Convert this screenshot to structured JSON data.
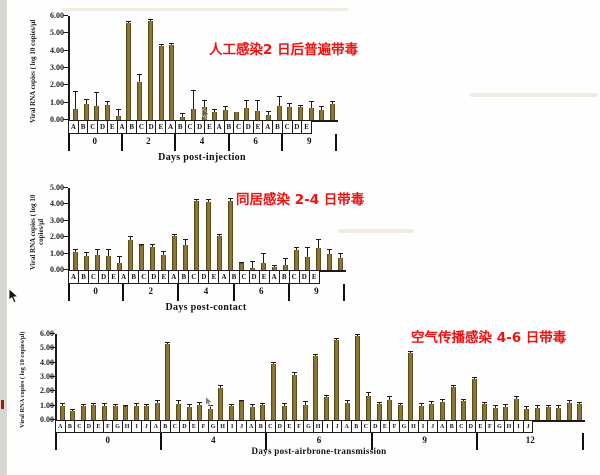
{
  "chart_data": [
    {
      "type": "bar",
      "annotation": "人工感染2 日后普遍带毒",
      "xlabel": "Days post-injection",
      "ylabel": "Viral RNA copies ( log 10 copies/µl",
      "ylim": [
        0,
        6
      ],
      "ytick_step": 1,
      "grid": false,
      "groups": [
        {
          "day": "0",
          "bars": [
            {
              "label": "A",
              "value": 0.65,
              "err": 0.95
            },
            {
              "label": "B",
              "value": 0.9,
              "err": 0.25
            },
            {
              "label": "C",
              "value": 0.8,
              "err": 0.75
            },
            {
              "label": "D",
              "value": 0.85,
              "err": 0.2
            },
            {
              "label": "E",
              "value": 0.25,
              "err": 0.3
            }
          ]
        },
        {
          "day": "2",
          "bars": [
            {
              "label": "A",
              "value": 5.6,
              "err": 0.05
            },
            {
              "label": "B",
              "value": 2.2,
              "err": 0.4
            },
            {
              "label": "C",
              "value": 5.7,
              "err": 0.05
            },
            {
              "label": "D",
              "value": 4.25,
              "err": 0.1
            },
            {
              "label": "E",
              "value": 4.3,
              "err": 0.1
            }
          ]
        },
        {
          "day": "4",
          "bars": [
            {
              "label": "A",
              "value": 0.15,
              "err": 0.2
            },
            {
              "label": "B",
              "value": 0.65,
              "err": 1.0
            },
            {
              "label": "C",
              "value": 0.75,
              "err": 0.35
            },
            {
              "label": "D",
              "value": 0.45,
              "err": 0.1
            },
            {
              "label": "E",
              "value": 0.6,
              "err": 0.15
            }
          ]
        },
        {
          "day": "6",
          "bars": [
            {
              "label": "A",
              "value": 0.45,
              "err": 0
            },
            {
              "label": "B",
              "value": 0.7,
              "err": 0.4
            },
            {
              "label": "C",
              "value": 0.5,
              "err": 0.6
            },
            {
              "label": "D",
              "value": 0.3,
              "err": 0.15
            },
            {
              "label": "E",
              "value": 0.8,
              "err": 0.55
            }
          ]
        },
        {
          "day": "9",
          "bars": [
            {
              "label": "A",
              "value": 0.75,
              "err": 0.15
            },
            {
              "label": "B",
              "value": 0.75,
              "err": 0.05
            },
            {
              "label": "C",
              "value": 0.7,
              "err": 0.35
            },
            {
              "label": "D",
              "value": 0.55,
              "err": 0.2
            },
            {
              "label": "E",
              "value": 0.95,
              "err": 0.1
            }
          ]
        }
      ]
    },
    {
      "type": "bar",
      "annotation": "同居感染 2-4 日带毒",
      "xlabel": "Days post-contact",
      "ylabel": "Viral RNA copies ( log 10 copies/µl",
      "ylim": [
        0,
        5
      ],
      "ytick_step": 1,
      "grid": false,
      "groups": [
        {
          "day": "0",
          "bars": [
            {
              "label": "A",
              "value": 1.1,
              "err": 0.1
            },
            {
              "label": "B",
              "value": 0.85,
              "err": 0.2
            },
            {
              "label": "C",
              "value": 0.9,
              "err": 0.3
            },
            {
              "label": "D",
              "value": 0.85,
              "err": 0.35
            },
            {
              "label": "E",
              "value": 0.45,
              "err": 0.35
            }
          ]
        },
        {
          "day": "2",
          "bars": [
            {
              "label": "A",
              "value": 1.85,
              "err": 0.15
            },
            {
              "label": "B",
              "value": 1.5,
              "err": 0.05
            },
            {
              "label": "C",
              "value": 1.4,
              "err": 0.15
            },
            {
              "label": "D",
              "value": 0.9,
              "err": 0.2
            },
            {
              "label": "E",
              "value": 2.1,
              "err": 0.05
            }
          ]
        },
        {
          "day": "4",
          "bars": [
            {
              "label": "A",
              "value": 1.55,
              "err": 0.3
            },
            {
              "label": "B",
              "value": 4.2,
              "err": 0.05
            },
            {
              "label": "C",
              "value": 4.15,
              "err": 0.1
            },
            {
              "label": "D",
              "value": 2.1,
              "err": 0.05
            },
            {
              "label": "E",
              "value": 4.2,
              "err": 0.15
            }
          ]
        },
        {
          "day": "6",
          "bars": [
            {
              "label": "A",
              "value": 0.4,
              "err": 0.05
            },
            {
              "label": "B",
              "value": 0.15,
              "err": 0.35
            },
            {
              "label": "C",
              "value": 0.45,
              "err": 0.55
            },
            {
              "label": "D",
              "value": 0.2,
              "err": 0.05
            },
            {
              "label": "E",
              "value": 0.3,
              "err": 0.35
            }
          ]
        },
        {
          "day": "9",
          "bars": [
            {
              "label": "A",
              "value": 1.2,
              "err": 0.15
            },
            {
              "label": "B",
              "value": 0.8,
              "err": 0.55
            },
            {
              "label": "C",
              "value": 1.35,
              "err": 0.5
            },
            {
              "label": "D",
              "value": 0.95,
              "err": 0.3
            },
            {
              "label": "E",
              "value": 0.75,
              "err": 0.25
            }
          ]
        }
      ]
    },
    {
      "type": "bar",
      "annotation": "空气传播感染 4-6 日带毒",
      "xlabel": "Days post-airbrone-transmission",
      "ylabel": "Viral RNA copies ( log 10 copies/µl)",
      "ylim": [
        0,
        6
      ],
      "ytick_step": 1,
      "grid": false,
      "groups": [
        {
          "day": "0",
          "bars": [
            {
              "label": "A",
              "value": 1.0,
              "err": 0.1
            },
            {
              "label": "B",
              "value": 0.65,
              "err": 0.05
            },
            {
              "label": "C",
              "value": 1.0,
              "err": 0.05
            },
            {
              "label": "D",
              "value": 1.05,
              "err": 0.1
            },
            {
              "label": "E",
              "value": 1.0,
              "err": 0.1
            },
            {
              "label": "F",
              "value": 1.0,
              "err": 0.05
            },
            {
              "label": "G",
              "value": 0.95,
              "err": 0.05
            },
            {
              "label": "H",
              "value": 1.0,
              "err": 0.15
            },
            {
              "label": "I",
              "value": 0.95,
              "err": 0.1
            },
            {
              "label": "J",
              "value": 1.2,
              "err": 0.1
            }
          ]
        },
        {
          "day": "4",
          "bars": [
            {
              "label": "A",
              "value": 5.3,
              "err": 0.1
            },
            {
              "label": "B",
              "value": 1.15,
              "err": 0.15
            },
            {
              "label": "C",
              "value": 0.9,
              "err": 0.15
            },
            {
              "label": "D",
              "value": 1.05,
              "err": 0.15
            },
            {
              "label": "E",
              "value": 0.8,
              "err": 0.15
            },
            {
              "label": "F",
              "value": 2.25,
              "err": 0.1
            },
            {
              "label": "G",
              "value": 1.0,
              "err": 0.05
            },
            {
              "label": "H",
              "value": 1.3,
              "err": 0.05
            },
            {
              "label": "I",
              "value": 0.9,
              "err": 0.15
            },
            {
              "label": "J",
              "value": 1.05,
              "err": 0.1
            }
          ]
        },
        {
          "day": "6",
          "bars": [
            {
              "label": "A",
              "value": 3.9,
              "err": 0.1
            },
            {
              "label": "B",
              "value": 1.0,
              "err": 0.1
            },
            {
              "label": "C",
              "value": 3.15,
              "err": 0.1
            },
            {
              "label": "D",
              "value": 1.05,
              "err": 0.2
            },
            {
              "label": "E",
              "value": 4.45,
              "err": 0.1
            },
            {
              "label": "F",
              "value": 1.6,
              "err": 0.1
            },
            {
              "label": "G",
              "value": 5.55,
              "err": 0.1
            },
            {
              "label": "H",
              "value": 1.2,
              "err": 0.15
            },
            {
              "label": "I",
              "value": 5.85,
              "err": 0.05
            },
            {
              "label": "J",
              "value": 1.65,
              "err": 0.25
            }
          ]
        },
        {
          "day": "9",
          "bars": [
            {
              "label": "A",
              "value": 1.1,
              "err": 0.1
            },
            {
              "label": "B",
              "value": 1.4,
              "err": 0.2
            },
            {
              "label": "C",
              "value": 1.05,
              "err": 0.1
            },
            {
              "label": "D",
              "value": 4.65,
              "err": 0.1
            },
            {
              "label": "E",
              "value": 0.95,
              "err": 0.2
            },
            {
              "label": "F",
              "value": 1.1,
              "err": 0.15
            },
            {
              "label": "G",
              "value": 1.25,
              "err": 0.15
            },
            {
              "label": "H",
              "value": 2.3,
              "err": 0.1
            },
            {
              "label": "I",
              "value": 1.3,
              "err": 0.1
            },
            {
              "label": "J",
              "value": 2.85,
              "err": 0.1
            }
          ]
        },
        {
          "day": "12",
          "bars": [
            {
              "label": "A",
              "value": 1.1,
              "err": 0.1
            },
            {
              "label": "B",
              "value": 0.85,
              "err": 0.15
            },
            {
              "label": "C",
              "value": 0.9,
              "err": 0.15
            },
            {
              "label": "D",
              "value": 1.45,
              "err": 0.15
            },
            {
              "label": "E",
              "value": 0.8,
              "err": 0.1
            },
            {
              "label": "F",
              "value": 0.85,
              "err": 0.15
            },
            {
              "label": "G",
              "value": 0.9,
              "err": 0.1
            },
            {
              "label": "H",
              "value": 0.85,
              "err": 0.15
            },
            {
              "label": "I",
              "value": 1.2,
              "err": 0.1
            },
            {
              "label": "J",
              "value": 1.1,
              "err": 0.1
            }
          ]
        }
      ]
    }
  ]
}
